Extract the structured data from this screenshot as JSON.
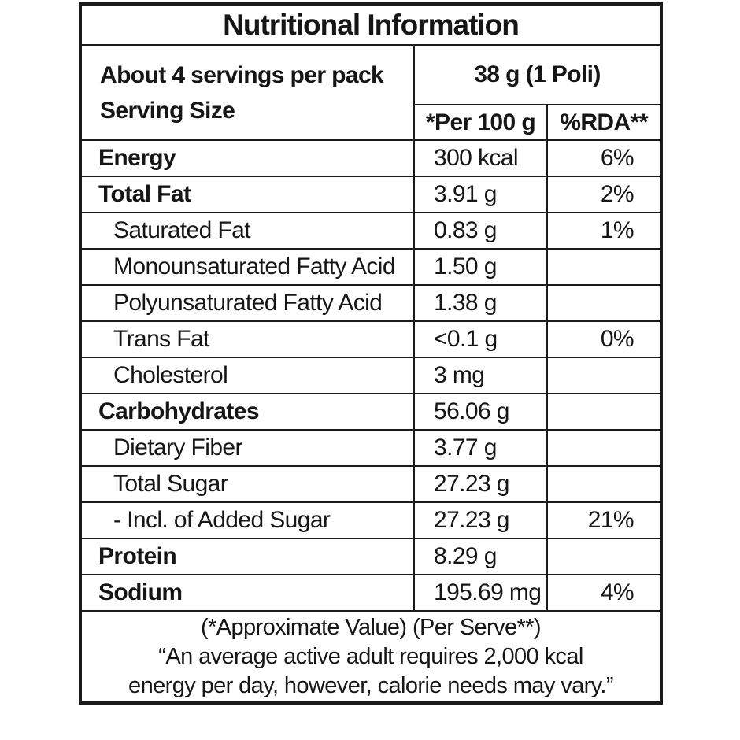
{
  "title": "Nutritional Information",
  "header": {
    "servings_line": "About 4 servings per pack",
    "serving_size_label": "Serving Size",
    "serving_size_value": "38 g (1 Poli)",
    "col_per100": "*Per 100 g",
    "col_rda": "%RDA**"
  },
  "rows": [
    {
      "label": "Energy",
      "bold": true,
      "indent": false,
      "per100": "300 kcal",
      "rda": "6%"
    },
    {
      "label": "Total Fat",
      "bold": true,
      "indent": false,
      "per100": "3.91 g",
      "rda": "2%"
    },
    {
      "label": "Saturated Fat",
      "bold": false,
      "indent": true,
      "per100": "0.83 g",
      "rda": "1%"
    },
    {
      "label": "Monounsaturated Fatty Acid",
      "bold": false,
      "indent": true,
      "per100": "1.50 g",
      "rda": ""
    },
    {
      "label": "Polyunsaturated Fatty Acid",
      "bold": false,
      "indent": true,
      "per100": "1.38 g",
      "rda": ""
    },
    {
      "label": "Trans Fat",
      "bold": false,
      "indent": true,
      "per100": "<0.1 g",
      "rda": "0%"
    },
    {
      "label": "Cholesterol",
      "bold": false,
      "indent": true,
      "per100": "3 mg",
      "rda": ""
    },
    {
      "label": "Carbohydrates",
      "bold": true,
      "indent": false,
      "per100": "56.06 g",
      "rda": ""
    },
    {
      "label": "Dietary Fiber",
      "bold": false,
      "indent": true,
      "per100": "3.77 g",
      "rda": ""
    },
    {
      "label": "Total Sugar",
      "bold": false,
      "indent": true,
      "per100": "27.23 g",
      "rda": ""
    },
    {
      "label": "- Incl. of Added Sugar",
      "bold": false,
      "indent": true,
      "per100": "27.23 g",
      "rda": "21%"
    },
    {
      "label": "Protein",
      "bold": true,
      "indent": false,
      "per100": "8.29 g",
      "rda": ""
    },
    {
      "label": "Sodium",
      "bold": true,
      "indent": false,
      "per100": "195.69 mg",
      "rda": "4%"
    }
  ],
  "footer": {
    "line1": "(*Approximate Value) (Per Serve**)",
    "line2": "“An average active adult requires 2,000 kcal",
    "line3": "energy per day, however, calorie needs may vary.”"
  },
  "colors": {
    "text": "#161616",
    "border": "#1a1a1a",
    "background": "#ffffff"
  }
}
